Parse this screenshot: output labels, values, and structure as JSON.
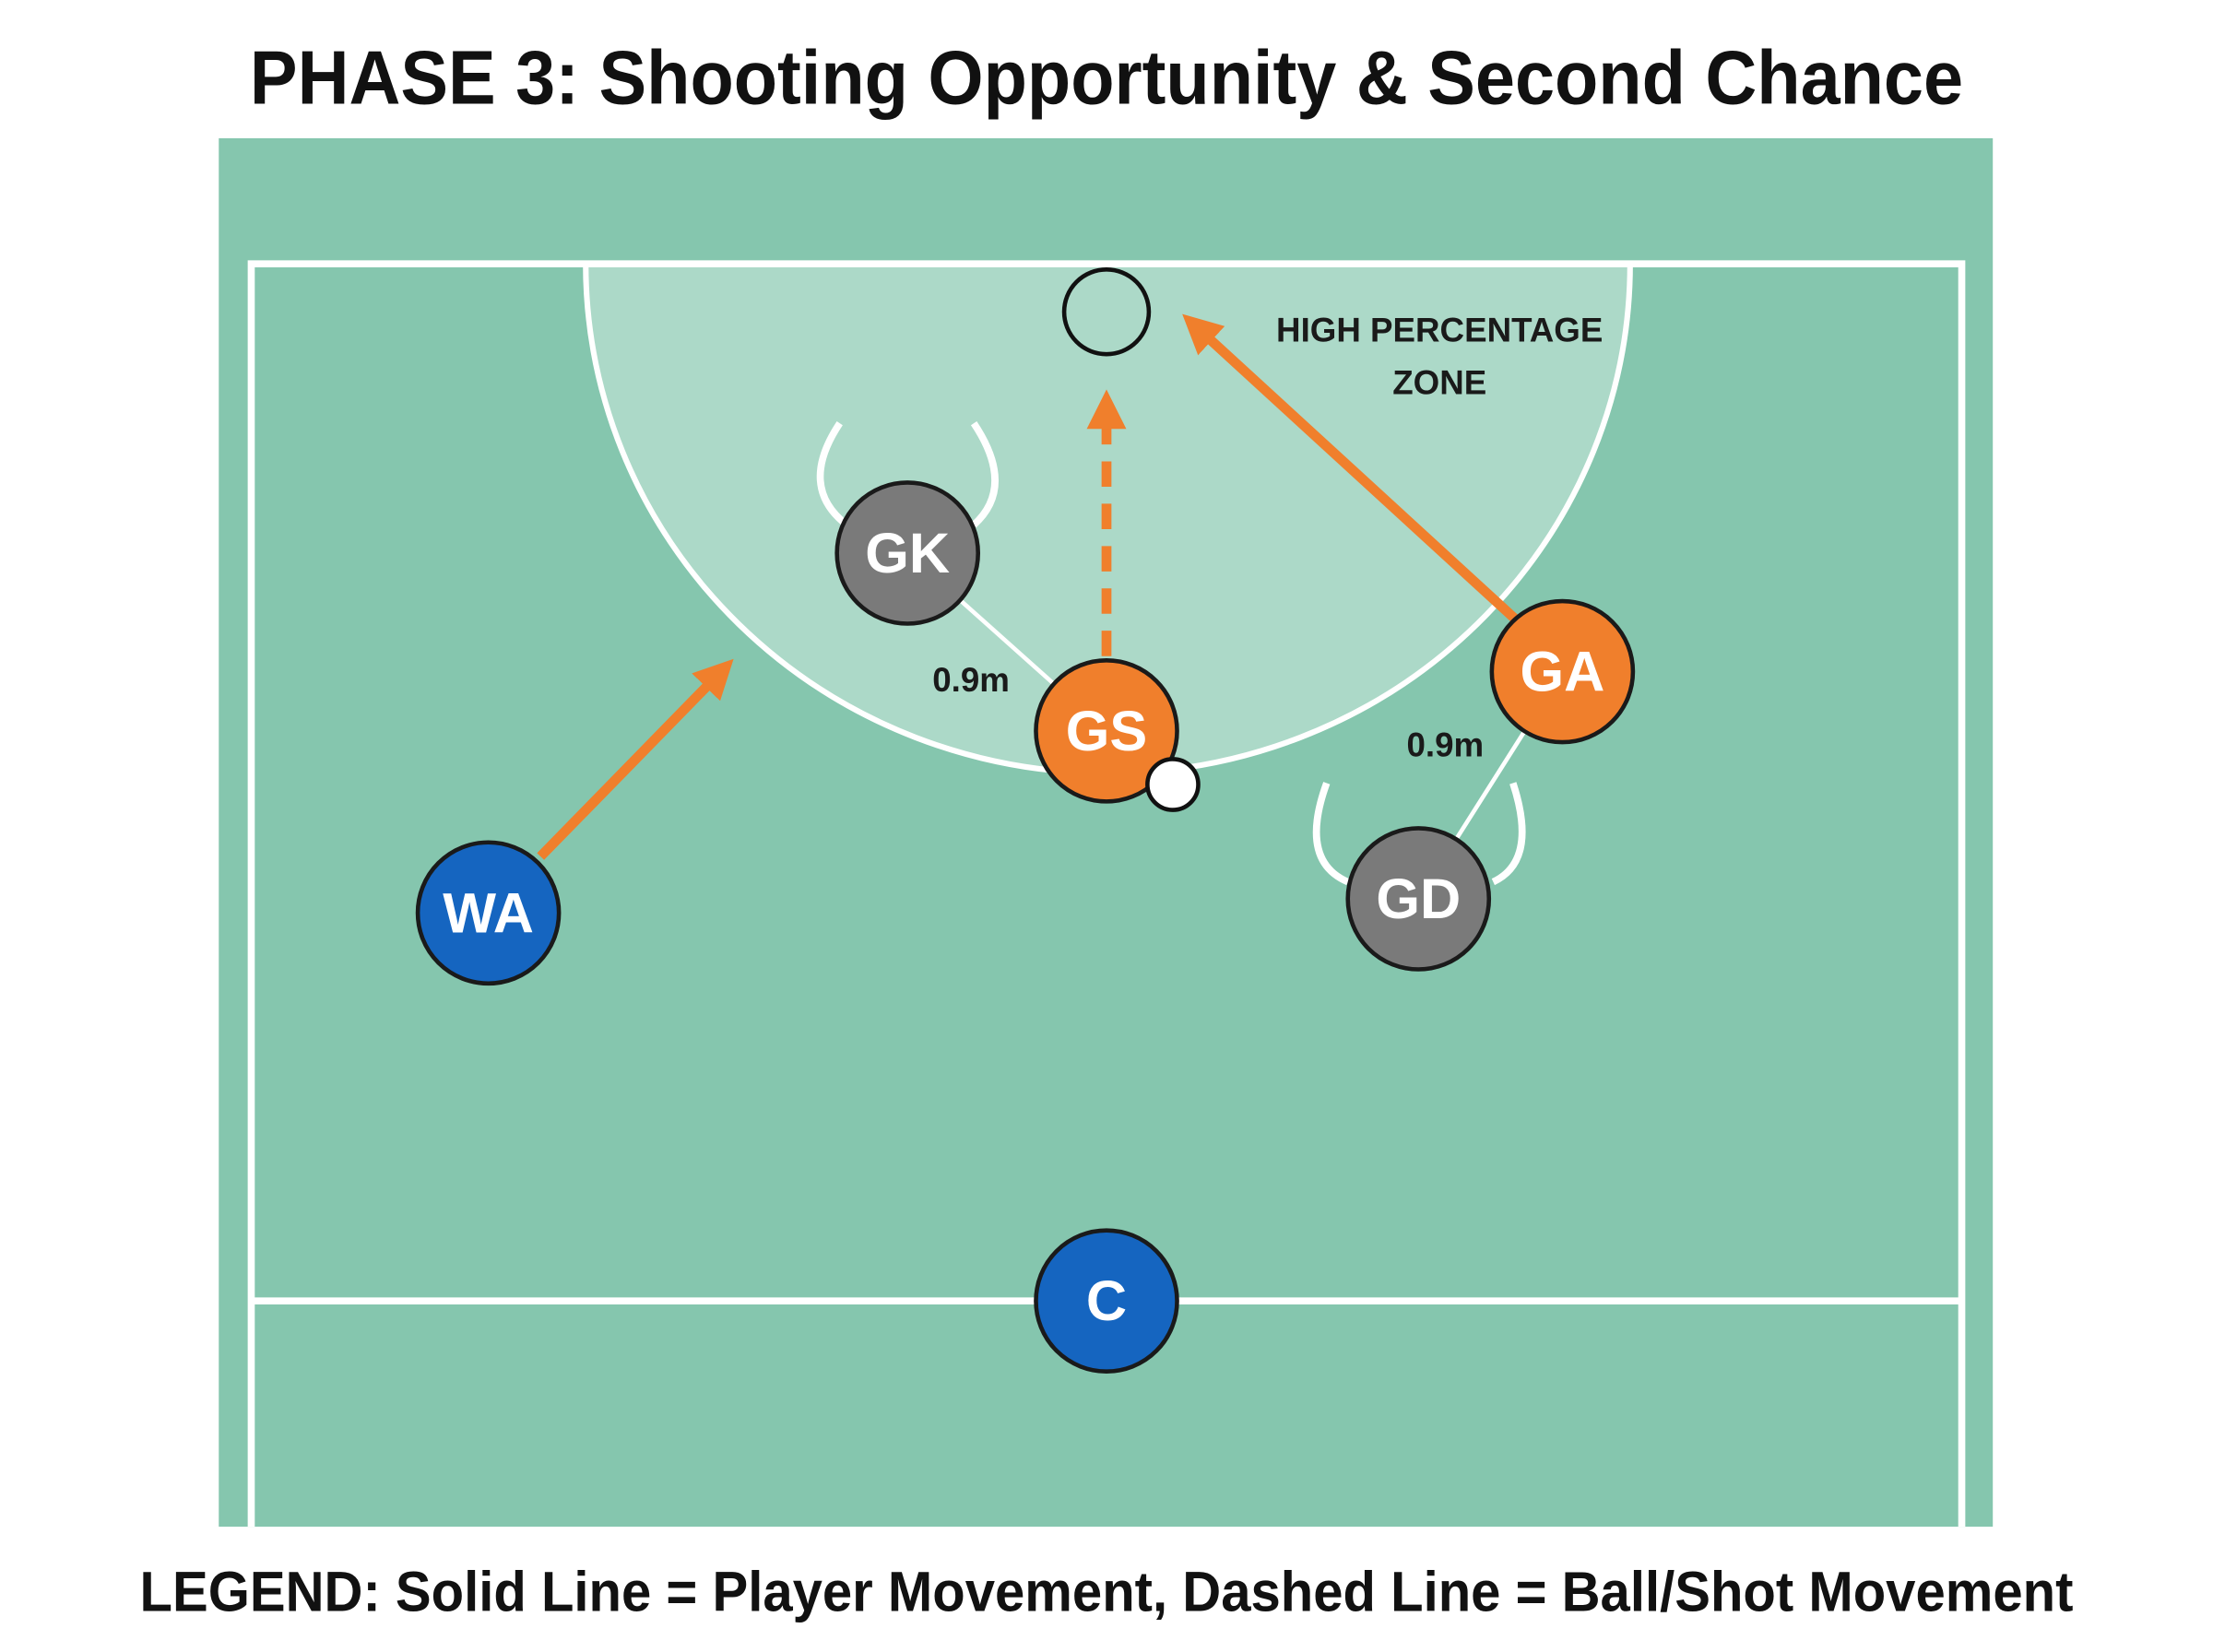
{
  "title": "PHASE 3: Shooting Opportunity & Second Chance",
  "zone_label": [
    "HIGH PERCENTAGE",
    "ZONE"
  ],
  "players": [
    {
      "label": "GK"
    },
    {
      "label": "GS"
    },
    {
      "label": "GA"
    },
    {
      "label": "GD"
    },
    {
      "label": "WA"
    },
    {
      "label": "C"
    }
  ],
  "distance_labels": [
    "0.9m",
    "0.9m"
  ],
  "legend": "LEGEND: Solid Line = Player Movement, Dashed Line = Ball/Shot Movement"
}
